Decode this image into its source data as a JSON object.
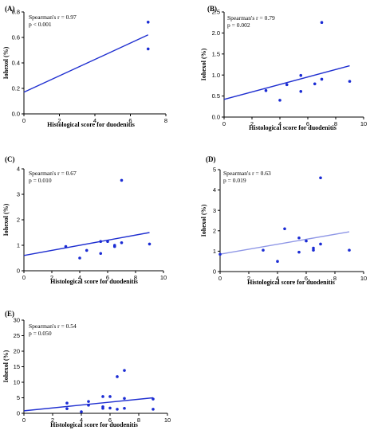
{
  "chart_data": [
    {
      "type": "scatter",
      "panel_label": "(A)",
      "stat_line1": "Spearman's r = 0.97",
      "stat_line2": "p < 0.001",
      "xlabel": "Histological score for duodenitis",
      "ylabel": "Iohexol (%)",
      "xlim": [
        0,
        8
      ],
      "ylim": [
        0,
        0.8
      ],
      "xticks": [
        0,
        2,
        4,
        6,
        8
      ],
      "yticks": [
        0,
        0.2,
        0.4,
        0.6,
        0.8
      ],
      "xtick_labels": [
        "0",
        "2",
        "4",
        "6",
        "8"
      ],
      "ytick_labels": [
        "0.0",
        "0.2",
        "0.4",
        "0.6",
        "0.8"
      ],
      "points": [
        {
          "x": 7,
          "y": 0.72
        },
        {
          "x": 7,
          "y": 0.51
        }
      ],
      "fit": {
        "x": [
          0,
          7
        ],
        "y": [
          0.17,
          0.62
        ]
      },
      "line_color": "#1f2fd0",
      "point_color": "#1a2bd4"
    },
    {
      "type": "scatter",
      "panel_label": "(B)",
      "stat_line1": "Spearman's r = 0.79",
      "stat_line2": "p = 0.002",
      "xlabel": "Histological score for duodenitis",
      "ylabel": "Iohexol (%)",
      "xlim": [
        0,
        10
      ],
      "ylim": [
        0,
        2.5
      ],
      "xticks": [
        0,
        2,
        4,
        6,
        8,
        10
      ],
      "yticks": [
        0,
        0.5,
        1.0,
        1.5,
        2.0,
        2.5
      ],
      "xtick_labels": [
        "0",
        "2",
        "4",
        "6",
        "8",
        "10"
      ],
      "ytick_labels": [
        "0.0",
        "0.5",
        "1.0",
        "1.5",
        "2.0",
        "2.5"
      ],
      "points": [
        {
          "x": 3,
          "y": 0.63
        },
        {
          "x": 4,
          "y": 0.4
        },
        {
          "x": 4.5,
          "y": 0.77
        },
        {
          "x": 5.5,
          "y": 0.99
        },
        {
          "x": 5.5,
          "y": 0.61
        },
        {
          "x": 6.5,
          "y": 0.79
        },
        {
          "x": 7,
          "y": 2.25
        },
        {
          "x": 7,
          "y": 0.9
        },
        {
          "x": 9,
          "y": 0.85
        }
      ],
      "fit": {
        "x": [
          0,
          9
        ],
        "y": [
          0.42,
          1.22
        ]
      },
      "line_color": "#1f2fd0",
      "point_color": "#1a2bd4"
    },
    {
      "type": "scatter",
      "panel_label": "(C)",
      "stat_line1": "Spearman's r = 0.67",
      "stat_line2": "p = 0.010",
      "xlabel": "Histological score for duodenitis",
      "ylabel": "Iohexol (%)",
      "xlim": [
        0,
        10
      ],
      "ylim": [
        0,
        4
      ],
      "xticks": [
        0,
        2,
        4,
        6,
        8,
        10
      ],
      "yticks": [
        0,
        1,
        2,
        3,
        4
      ],
      "xtick_labels": [
        "0",
        "2",
        "4",
        "6",
        "8",
        "10"
      ],
      "ytick_labels": [
        "0",
        "1",
        "2",
        "3",
        "4"
      ],
      "points": [
        {
          "x": 3,
          "y": 0.95
        },
        {
          "x": 4,
          "y": 0.5
        },
        {
          "x": 4.5,
          "y": 0.8
        },
        {
          "x": 5.5,
          "y": 1.15
        },
        {
          "x": 5.5,
          "y": 0.68
        },
        {
          "x": 6,
          "y": 1.15
        },
        {
          "x": 6.5,
          "y": 1.0
        },
        {
          "x": 6.5,
          "y": 0.95
        },
        {
          "x": 7,
          "y": 3.55
        },
        {
          "x": 7,
          "y": 1.1
        },
        {
          "x": 9,
          "y": 1.05
        }
      ],
      "fit": {
        "x": [
          0,
          9
        ],
        "y": [
          0.6,
          1.5
        ]
      },
      "line_color": "#1f2fd0",
      "point_color": "#1a2bd4"
    },
    {
      "type": "scatter",
      "panel_label": "(D)",
      "stat_line1": "Spearman's r = 0.63",
      "stat_line2": "p = 0.019",
      "xlabel": "Histological score for duodenitis",
      "ylabel": "Iohexol (%)",
      "xlim": [
        0,
        10
      ],
      "ylim": [
        0,
        5
      ],
      "xticks": [
        0,
        2,
        4,
        6,
        8,
        10
      ],
      "yticks": [
        0,
        1,
        2,
        3,
        4,
        5
      ],
      "xtick_labels": [
        "0",
        "2",
        "4",
        "6",
        "8",
        "10"
      ],
      "ytick_labels": [
        "0",
        "1",
        "2",
        "3",
        "4",
        "5"
      ],
      "points": [
        {
          "x": 0,
          "y": 0.85
        },
        {
          "x": 3,
          "y": 1.05
        },
        {
          "x": 4,
          "y": 0.5
        },
        {
          "x": 4.5,
          "y": 2.1
        },
        {
          "x": 5.5,
          "y": 1.65
        },
        {
          "x": 5.5,
          "y": 0.95
        },
        {
          "x": 6,
          "y": 1.5
        },
        {
          "x": 6.5,
          "y": 1.15
        },
        {
          "x": 6.5,
          "y": 1.05
        },
        {
          "x": 7,
          "y": 4.6
        },
        {
          "x": 7,
          "y": 1.35
        },
        {
          "x": 9,
          "y": 1.05
        }
      ],
      "fit": {
        "x": [
          0,
          9
        ],
        "y": [
          0.85,
          1.95
        ]
      },
      "line_color": "#8f97e6",
      "point_color": "#1a2bd4"
    },
    {
      "type": "scatter",
      "panel_label": "(E)",
      "stat_line1": "Spearman's r = 0.54",
      "stat_line2": "p = 0.050",
      "xlabel": "Histological score for duodenitis",
      "ylabel": "Iohexol (%)",
      "xlim": [
        0,
        10
      ],
      "ylim": [
        0,
        30
      ],
      "xticks": [
        0,
        2,
        4,
        6,
        8,
        10
      ],
      "yticks": [
        0,
        5,
        10,
        15,
        20,
        25,
        30
      ],
      "xtick_labels": [
        "0",
        "2",
        "4",
        "6",
        "8",
        "10"
      ],
      "ytick_labels": [
        "0",
        "5",
        "10",
        "15",
        "20",
        "25",
        "30"
      ],
      "points": [
        {
          "x": 3,
          "y": 3.3
        },
        {
          "x": 3,
          "y": 1.5
        },
        {
          "x": 4,
          "y": 0.5
        },
        {
          "x": 4.5,
          "y": 3.8
        },
        {
          "x": 4.5,
          "y": 2.6
        },
        {
          "x": 5.5,
          "y": 5.4
        },
        {
          "x": 5.5,
          "y": 2.1
        },
        {
          "x": 5.5,
          "y": 1.6
        },
        {
          "x": 6,
          "y": 5.4
        },
        {
          "x": 6,
          "y": 1.7
        },
        {
          "x": 6.5,
          "y": 11.8
        },
        {
          "x": 6.5,
          "y": 1.3
        },
        {
          "x": 7,
          "y": 13.8
        },
        {
          "x": 7,
          "y": 4.8
        },
        {
          "x": 7,
          "y": 1.6
        },
        {
          "x": 9,
          "y": 4.6
        },
        {
          "x": 9,
          "y": 1.3
        }
      ],
      "fit": {
        "x": [
          0,
          9
        ],
        "y": [
          0.8,
          5.0
        ]
      },
      "line_color": "#1f2fd0",
      "point_color": "#1a2bd4"
    }
  ]
}
